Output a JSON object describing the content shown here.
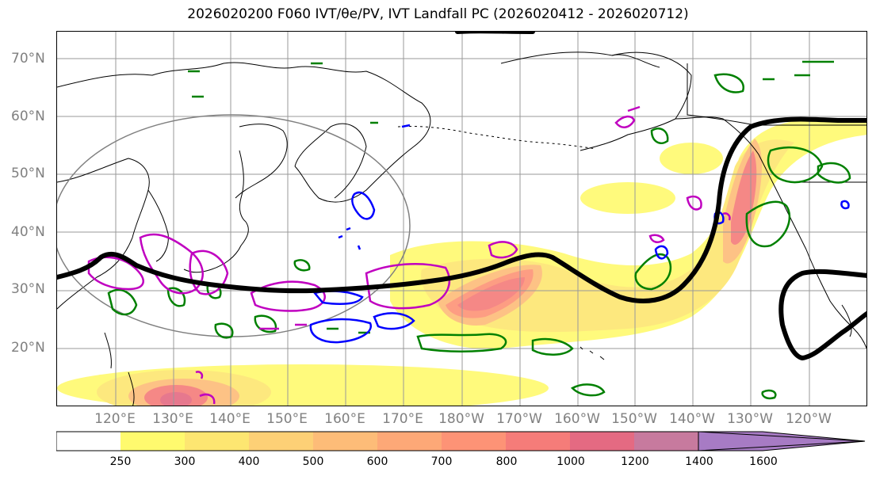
{
  "title": "2026020200 F060 IVT/θe/PV, IVT Landfall PC (2026020412 - 2026020712)",
  "map": {
    "lat_labels": [
      "70°N",
      "60°N",
      "50°N",
      "40°N",
      "30°N",
      "20°N"
    ],
    "lon_labels": [
      "120°E",
      "130°E",
      "140°E",
      "150°E",
      "160°E",
      "170°E",
      "180°W",
      "170°W",
      "160°W",
      "150°W",
      "140°W",
      "130°W",
      "120°W"
    ],
    "colors": {
      "ivt_contour_pv": "#c000c0",
      "theta_e_green": "#008000",
      "blue_contour": "#0000ff",
      "jet_line": "#000000",
      "coast": "#000000",
      "gridline": "#999999"
    }
  },
  "colorbar": {
    "ticks": [
      "250",
      "300",
      "400",
      "500",
      "600",
      "700",
      "800",
      "1000",
      "1200",
      "1400",
      "1600"
    ],
    "colors": [
      "#ffffff",
      "#fffa6e",
      "#fde671",
      "#fdd076",
      "#fdbc78",
      "#fda877",
      "#fd9376",
      "#f57c79",
      "#e46a82",
      "#c77a9e",
      "#a77bc4"
    ]
  }
}
